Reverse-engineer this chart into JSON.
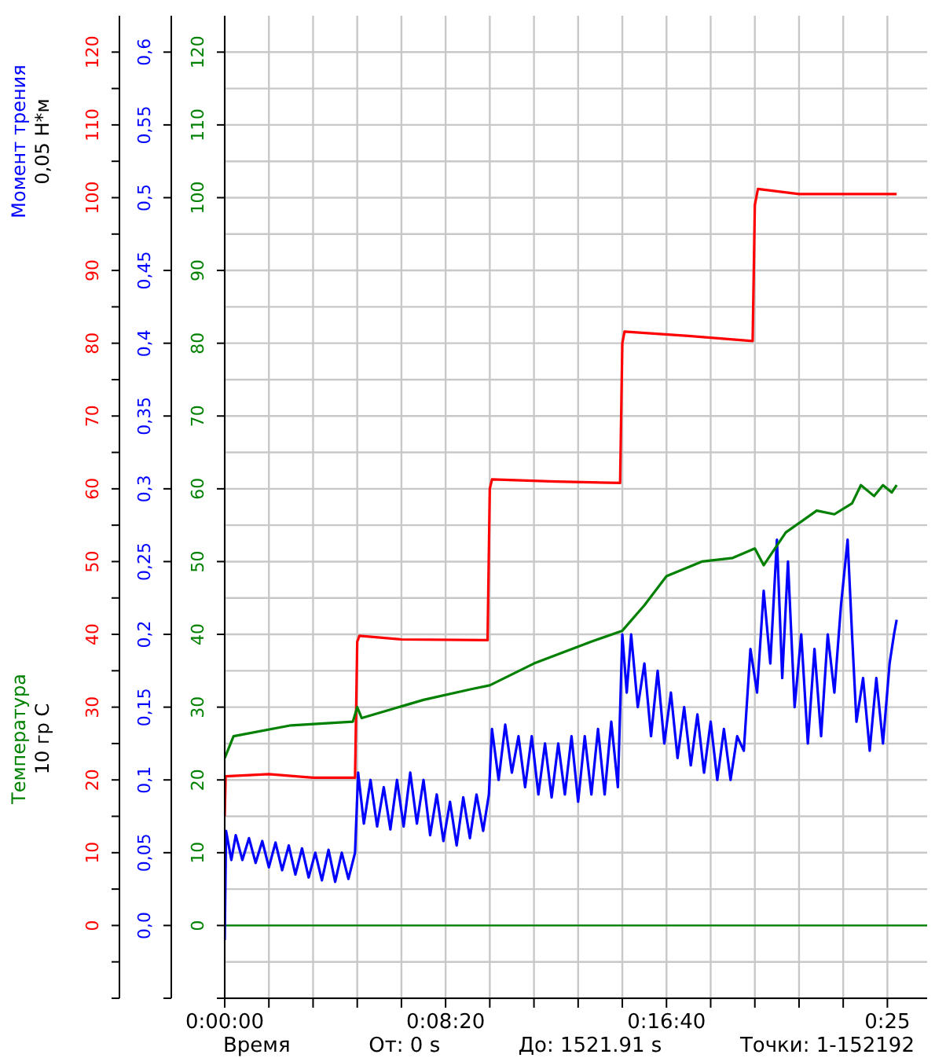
{
  "chart_data": {
    "type": "line",
    "xlabel": "Время",
    "y2label": "Момент трения\n0,05 Н*м",
    "y3label": "Температура\n10 гр С",
    "annotations": [
      "От: 0 s",
      "До: 1521.91 s",
      "Точки: 1-152192"
    ],
    "xlim": [
      0,
      1590
    ],
    "xticks": [
      {
        "value": 0,
        "label": "0:00:00"
      },
      {
        "value": 100,
        "label": null
      },
      {
        "value": 200,
        "label": null
      },
      {
        "value": 300,
        "label": null
      },
      {
        "value": 400,
        "label": null
      },
      {
        "value": 500,
        "label": "0:08:20"
      },
      {
        "value": 600,
        "label": null
      },
      {
        "value": 700,
        "label": null
      },
      {
        "value": 800,
        "label": null
      },
      {
        "value": 900,
        "label": null
      },
      {
        "value": 1000,
        "label": "0:16:40"
      },
      {
        "value": 1100,
        "label": null
      },
      {
        "value": 1200,
        "label": null
      },
      {
        "value": 1300,
        "label": null
      },
      {
        "value": 1400,
        "label": null
      },
      {
        "value": 1500,
        "label": "0:25"
      }
    ],
    "ylim": [
      -10,
      125
    ],
    "yticks": [
      {
        "value": -10,
        "label": null
      },
      {
        "value": -5,
        "label": null
      },
      0,
      {
        "value": 5,
        "label": null
      },
      10,
      {
        "value": 15,
        "label": null
      },
      20,
      {
        "value": 25,
        "label": null
      },
      30,
      {
        "value": 35,
        "label": null
      },
      40,
      {
        "value": 45,
        "label": null
      },
      50,
      {
        "value": 55,
        "label": null
      },
      60,
      {
        "value": 65,
        "label": null
      },
      70,
      {
        "value": 75,
        "label": null
      },
      80,
      {
        "value": 85,
        "label": null
      },
      90,
      {
        "value": 95,
        "label": null
      },
      100,
      {
        "value": 105,
        "label": null
      },
      110,
      {
        "value": 115,
        "label": null
      },
      120
    ],
    "y2lim": [
      -0.05,
      0.625
    ],
    "y2ticks": [
      {
        "value": -0.05,
        "label": null
      },
      {
        "value": 0,
        "label": "0,0"
      },
      {
        "value": 0.05,
        "label": "0,05"
      },
      {
        "value": 0.1,
        "label": "0,1"
      },
      {
        "value": 0.15,
        "label": "0,15"
      },
      {
        "value": 0.2,
        "label": "0,2"
      },
      {
        "value": 0.25,
        "label": "0,25"
      },
      {
        "value": 0.3,
        "label": "0,3"
      },
      {
        "value": 0.35,
        "label": "0,35"
      },
      {
        "value": 0.4,
        "label": "0,4"
      },
      {
        "value": 0.45,
        "label": "0,45"
      },
      {
        "value": 0.5,
        "label": "0,5"
      },
      {
        "value": 0.55,
        "label": "0,55"
      },
      {
        "value": 0.6,
        "label": "0,6"
      }
    ],
    "y3lim": [
      -10,
      125
    ],
    "y3ticks": [
      {
        "value": -10,
        "label": null
      },
      0,
      10,
      20,
      30,
      40,
      50,
      60,
      70,
      80,
      90,
      100,
      110,
      120
    ],
    "grid": true,
    "marker": "none",
    "ref_lines": [
      {
        "axis": "y3",
        "value": 0
      }
    ],
    "series": [
      {
        "color": "#ff0000",
        "axis": "y",
        "x": [
          0,
          2,
          100,
          200,
          295,
          300,
          305,
          400,
          595,
          600,
          605,
          750,
          895,
          900,
          905,
          1050,
          1195,
          1200,
          1207,
          1300,
          1521
        ],
        "values": [
          15,
          20.5,
          20.8,
          20.3,
          20.3,
          39,
          39.8,
          39.3,
          39.2,
          60,
          61.3,
          61,
          60.8,
          80,
          81.6,
          81,
          80.3,
          99,
          101.2,
          100.5,
          100.5
        ]
      },
      {
        "color": "#0000ff",
        "axis": "y2",
        "x": [
          0,
          3,
          15,
          25,
          40,
          55,
          70,
          85,
          100,
          115,
          130,
          145,
          160,
          175,
          190,
          205,
          220,
          235,
          250,
          265,
          280,
          295,
          302,
          315,
          330,
          345,
          360,
          375,
          390,
          405,
          420,
          435,
          450,
          465,
          480,
          495,
          510,
          525,
          540,
          555,
          570,
          585,
          598,
          605,
          620,
          635,
          650,
          665,
          680,
          695,
          710,
          725,
          740,
          755,
          770,
          785,
          800,
          815,
          830,
          845,
          860,
          875,
          890,
          900,
          910,
          920,
          935,
          950,
          965,
          980,
          995,
          1010,
          1025,
          1040,
          1055,
          1070,
          1085,
          1100,
          1115,
          1130,
          1145,
          1160,
          1175,
          1190,
          1205,
          1220,
          1235,
          1250,
          1262,
          1275,
          1290,
          1305,
          1320,
          1335,
          1350,
          1365,
          1380,
          1395,
          1410,
          1420,
          1430,
          1445,
          1460,
          1475,
          1490,
          1505,
          1515,
          1521
        ],
        "values": [
          -0.01,
          0.065,
          0.045,
          0.062,
          0.045,
          0.06,
          0.043,
          0.058,
          0.04,
          0.057,
          0.038,
          0.055,
          0.035,
          0.053,
          0.033,
          0.05,
          0.031,
          0.052,
          0.03,
          0.05,
          0.032,
          0.05,
          0.105,
          0.07,
          0.1,
          0.068,
          0.095,
          0.066,
          0.1,
          0.068,
          0.105,
          0.07,
          0.1,
          0.062,
          0.09,
          0.058,
          0.085,
          0.055,
          0.088,
          0.06,
          0.09,
          0.065,
          0.09,
          0.135,
          0.1,
          0.138,
          0.105,
          0.13,
          0.095,
          0.13,
          0.09,
          0.125,
          0.088,
          0.125,
          0.09,
          0.13,
          0.085,
          0.13,
          0.09,
          0.135,
          0.09,
          0.14,
          0.095,
          0.2,
          0.16,
          0.2,
          0.15,
          0.18,
          0.13,
          0.175,
          0.125,
          0.16,
          0.115,
          0.15,
          0.11,
          0.145,
          0.105,
          0.14,
          0.1,
          0.135,
          0.1,
          0.13,
          0.12,
          0.19,
          0.16,
          0.23,
          0.18,
          0.265,
          0.17,
          0.25,
          0.15,
          0.2,
          0.125,
          0.19,
          0.13,
          0.2,
          0.16,
          0.22,
          0.265,
          0.2,
          0.14,
          0.17,
          0.12,
          0.17,
          0.125,
          0.18,
          0.2,
          0.21
        ]
      },
      {
        "color": "#008000",
        "axis": "y3",
        "x": [
          0,
          20,
          150,
          290,
          300,
          310,
          450,
          560,
          600,
          700,
          830,
          900,
          950,
          1000,
          1080,
          1150,
          1200,
          1220,
          1270,
          1340,
          1380,
          1420,
          1440,
          1470,
          1490,
          1510,
          1521
        ],
        "values": [
          23,
          26,
          27.5,
          28,
          30,
          28.5,
          31,
          32.5,
          33,
          36,
          39,
          40.5,
          44,
          48,
          50,
          50.5,
          51.8,
          49.5,
          54,
          57,
          56.5,
          58,
          60.5,
          59,
          60.5,
          59.5,
          60.5
        ]
      }
    ]
  }
}
